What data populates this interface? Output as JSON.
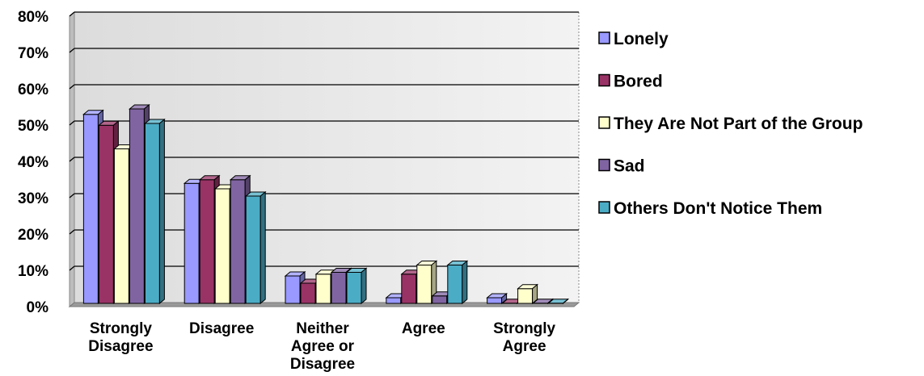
{
  "chart_data": {
    "type": "bar",
    "title": "",
    "xlabel": "",
    "ylabel": "",
    "ylim": [
      0,
      80
    ],
    "yticks": [
      0,
      10,
      20,
      30,
      40,
      50,
      60,
      70,
      80
    ],
    "ytick_suffix": "%",
    "grid": true,
    "legend_position": "right",
    "categories": [
      [
        "Strongly",
        "Disagree"
      ],
      [
        "Disagree"
      ],
      [
        "Neither",
        "Agree or",
        "Disagree"
      ],
      [
        "Agree"
      ],
      [
        "Strongly",
        "Agree"
      ]
    ],
    "series": [
      {
        "name": "Lonely",
        "color": "#9999ff",
        "values": [
          52.5,
          33.5,
          8,
          2,
          2
        ]
      },
      {
        "name": "Bored",
        "color": "#993366",
        "values": [
          49.5,
          34.5,
          6,
          8.5,
          0.5
        ]
      },
      {
        "name": "They Are Not Part of the Group",
        "color": "#ffffcc",
        "values": [
          43,
          32,
          8.5,
          11,
          4.5
        ]
      },
      {
        "name": "Sad",
        "color": "#8064a2",
        "values": [
          54,
          34.5,
          9,
          2.5,
          0.5
        ]
      },
      {
        "name": "Others Don't Notice Them",
        "color": "#4bacc6",
        "values": [
          50,
          30,
          9,
          11,
          0.5
        ]
      }
    ]
  }
}
